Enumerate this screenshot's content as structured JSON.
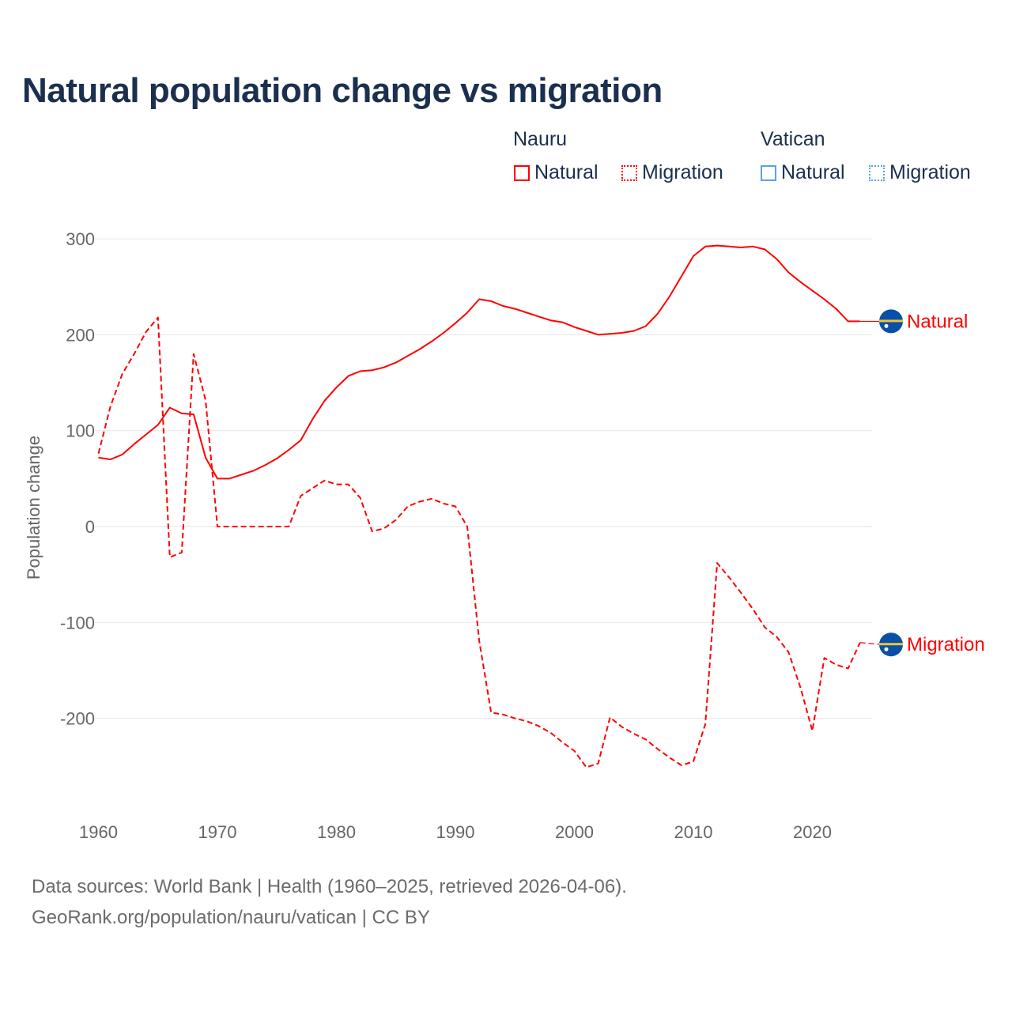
{
  "title": "Natural population change vs migration",
  "legend": {
    "groups": [
      {
        "name": "Nauru",
        "color": "#ff0000",
        "items": [
          "Natural",
          "Migration"
        ]
      },
      {
        "name": "Vatican",
        "color": "#5ba3e6",
        "items": [
          "Natural",
          "Migration"
        ]
      }
    ]
  },
  "footer": {
    "line1": "Data sources: World Bank | Health (1960–2025, retrieved 2026-04-06).",
    "line2": "GeoRank.org/population/nauru/vatican | CC BY"
  },
  "chart_data": {
    "type": "line",
    "title": "Natural population change vs migration",
    "xlabel": "",
    "ylabel": "Population change",
    "xlim": [
      1960,
      2025
    ],
    "ylim": [
      -270,
      310
    ],
    "x_ticks": [
      1960,
      1970,
      1980,
      1990,
      2000,
      2010,
      2020
    ],
    "y_ticks": [
      -200,
      -100,
      0,
      100,
      200,
      300
    ],
    "grid": true,
    "legend_position": "top-right",
    "x": [
      1960,
      1961,
      1962,
      1963,
      1964,
      1965,
      1966,
      1967,
      1968,
      1969,
      1970,
      1971,
      1972,
      1973,
      1974,
      1975,
      1976,
      1977,
      1978,
      1979,
      1980,
      1981,
      1982,
      1983,
      1984,
      1985,
      1986,
      1987,
      1988,
      1989,
      1990,
      1991,
      1992,
      1993,
      1994,
      1995,
      1996,
      1997,
      1998,
      1999,
      2000,
      2001,
      2002,
      2003,
      2004,
      2005,
      2006,
      2007,
      2008,
      2009,
      2010,
      2011,
      2012,
      2013,
      2014,
      2015,
      2016,
      2017,
      2018,
      2019,
      2020,
      2021,
      2022,
      2023,
      2024,
      2025
    ],
    "series": [
      {
        "name": "Natural",
        "country": "Nauru",
        "style": "solid",
        "color": "#ff0000",
        "end_label": "Natural",
        "values": [
          72,
          70,
          75,
          86,
          96,
          106,
          124,
          118,
          117,
          72,
          50,
          50,
          54,
          58,
          64,
          71,
          80,
          90,
          112,
          131,
          145,
          157,
          162,
          163,
          166,
          171,
          178,
          185,
          193,
          202,
          212,
          223,
          237,
          235,
          230,
          227,
          223,
          219,
          215,
          213,
          208,
          204,
          200,
          201,
          202,
          204,
          209,
          222,
          240,
          261,
          282,
          292,
          293,
          292,
          291,
          292,
          289,
          279,
          265,
          255,
          246,
          237,
          227,
          214,
          214,
          214
        ]
      },
      {
        "name": "Migration",
        "country": "Nauru",
        "style": "dashed",
        "color": "#ff0000",
        "end_label": "Migration",
        "values": [
          76,
          125,
          159,
          180,
          203,
          218,
          -32,
          -27,
          180,
          132,
          0,
          0,
          0,
          0,
          0,
          0,
          0,
          32,
          40,
          48,
          44,
          44,
          30,
          -5,
          -2,
          7,
          21,
          26,
          29,
          24,
          21,
          0,
          -119,
          -194,
          -196,
          -200,
          -203,
          -208,
          -215,
          -225,
          -234,
          -251,
          -247,
          -199,
          -209,
          -216,
          -222,
          -232,
          -241,
          -249,
          -245,
          -206,
          -38,
          -53,
          -69,
          -86,
          -105,
          -115,
          -131,
          -168,
          -213,
          -137,
          -144,
          -148,
          -121,
          -123
        ]
      }
    ]
  }
}
